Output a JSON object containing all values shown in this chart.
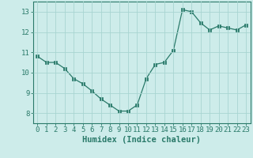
{
  "x": [
    0,
    1,
    2,
    3,
    4,
    5,
    6,
    7,
    8,
    9,
    10,
    11,
    12,
    13,
    14,
    15,
    16,
    17,
    18,
    19,
    20,
    21,
    22,
    23
  ],
  "y": [
    10.8,
    10.5,
    10.5,
    10.2,
    9.7,
    9.45,
    9.1,
    8.7,
    8.4,
    8.1,
    8.1,
    8.4,
    9.7,
    10.4,
    10.5,
    11.1,
    13.1,
    13.0,
    12.45,
    12.1,
    12.3,
    12.2,
    12.1,
    12.35
  ],
  "line_color": "#2a7a6a",
  "marker": "s",
  "marker_size": 2.5,
  "bg_color": "#cdecea",
  "grid_color": "#a8d5d1",
  "xlabel": "Humidex (Indice chaleur)",
  "ylim": [
    7.5,
    13.5
  ],
  "xlim": [
    -0.5,
    23.5
  ],
  "yticks": [
    8,
    9,
    10,
    11,
    12,
    13
  ],
  "xticks": [
    0,
    1,
    2,
    3,
    4,
    5,
    6,
    7,
    8,
    9,
    10,
    11,
    12,
    13,
    14,
    15,
    16,
    17,
    18,
    19,
    20,
    21,
    22,
    23
  ],
  "label_fontsize": 7.5,
  "tick_fontsize": 6.5
}
